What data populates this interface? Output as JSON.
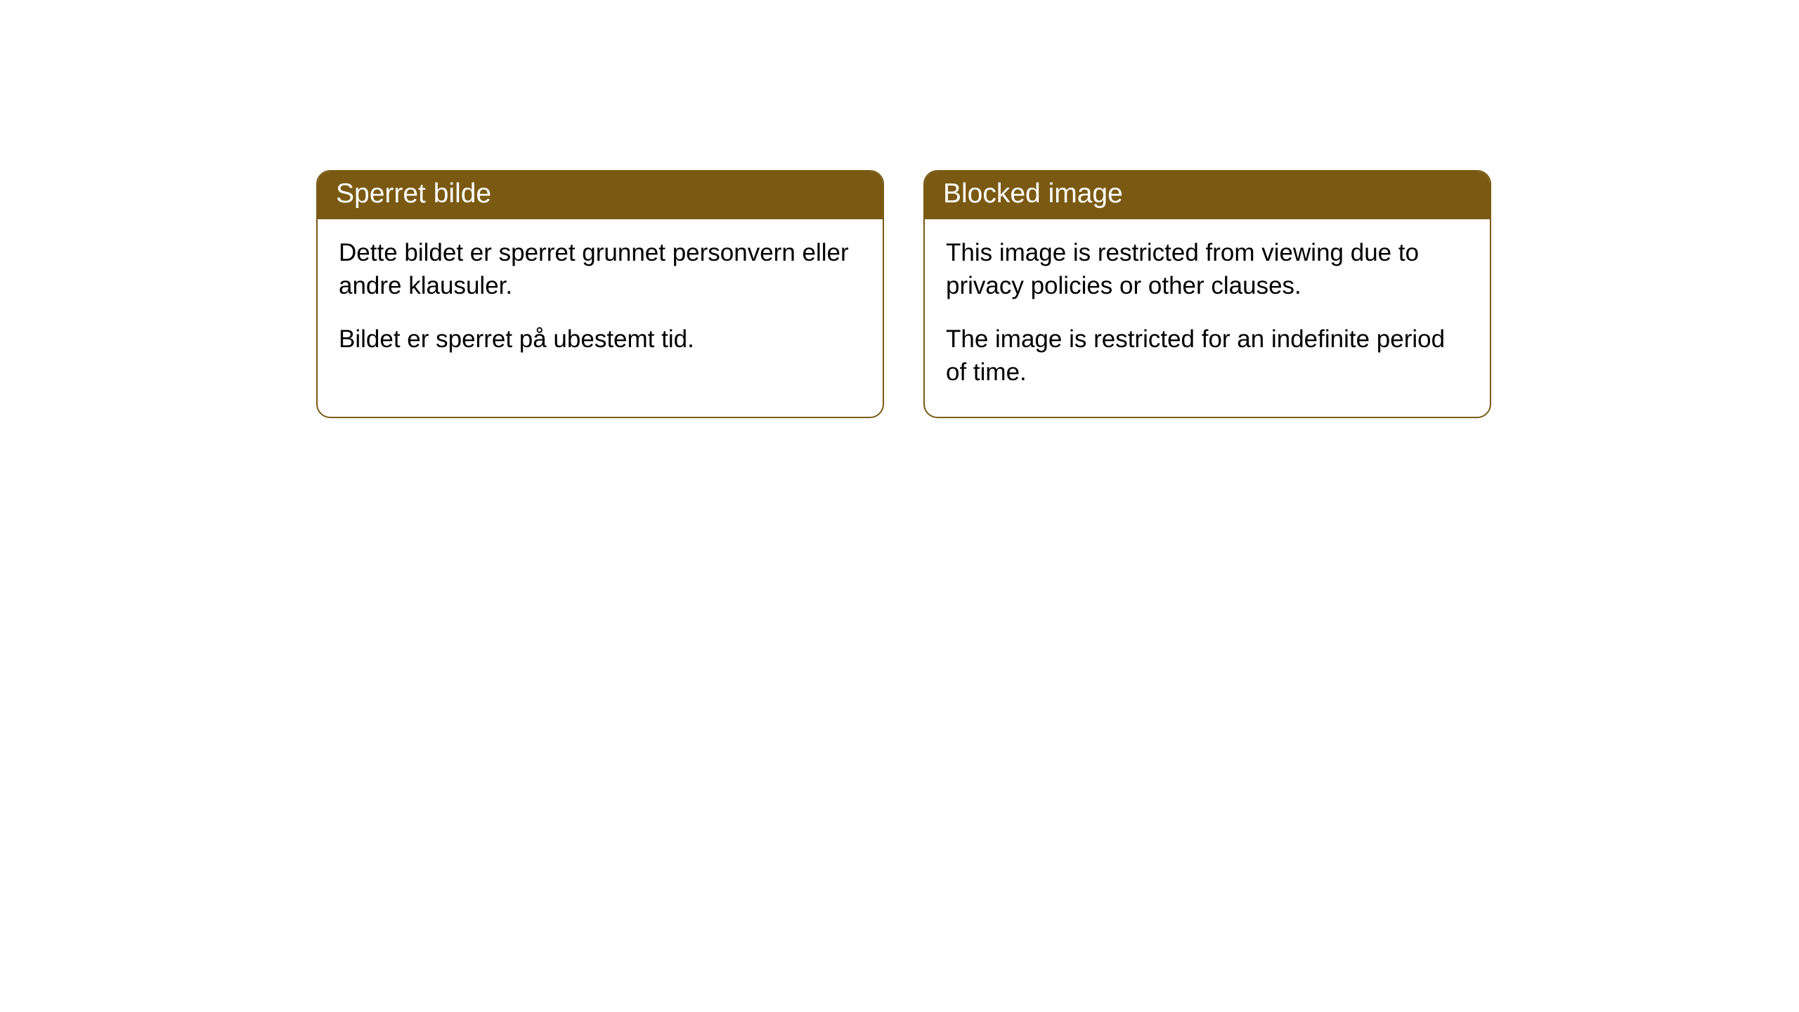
{
  "cards": [
    {
      "title": "Sperret bilde",
      "paragraph1": "Dette bildet er sperret grunnet personvern eller andre klausuler.",
      "paragraph2": "Bildet er sperret på ubestemt tid."
    },
    {
      "title": "Blocked image",
      "paragraph1": "This image is restricted from viewing due to privacy policies or other clauses.",
      "paragraph2": "The image is restricted for an indefinite period of time."
    }
  ],
  "style": {
    "header_bg": "#7a5a13",
    "header_text_color": "#ffffff",
    "card_border_color": "#7a5a13",
    "card_bg": "#ffffff",
    "body_text_color": "#000000",
    "border_radius": 20,
    "header_fontsize": 39,
    "body_fontsize": 35
  }
}
